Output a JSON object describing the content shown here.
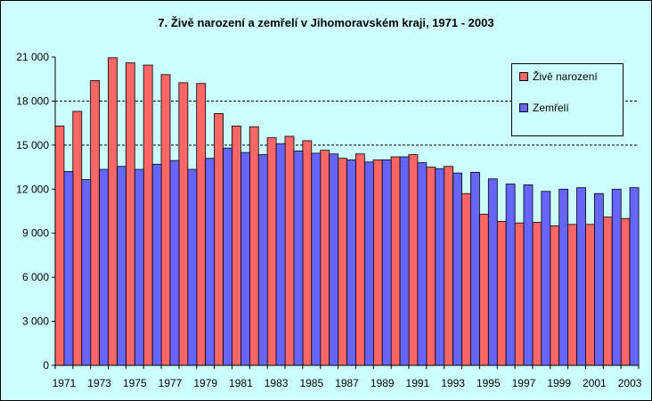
{
  "chart_data": {
    "type": "bar",
    "title": "7. Živě narození a zemřelí v Jihomoravském kraji, 1971 - 2003",
    "categories": [
      "1971",
      "1972",
      "1973",
      "1974",
      "1975",
      "1976",
      "1977",
      "1978",
      "1979",
      "1980",
      "1981",
      "1982",
      "1983",
      "1984",
      "1985",
      "1986",
      "1987",
      "1988",
      "1989",
      "1990",
      "1991",
      "1992",
      "1993",
      "1994",
      "1995",
      "1996",
      "1997",
      "1998",
      "1999",
      "2000",
      "2001",
      "2002",
      "2003"
    ],
    "x_tick_labels": [
      "1971",
      "1973",
      "1975",
      "1977",
      "1979",
      "1981",
      "1983",
      "1985",
      "1987",
      "1989",
      "1991",
      "1993",
      "1995",
      "1997",
      "1999",
      "2001",
      "2003"
    ],
    "y_tick_labels": [
      "0",
      "3 000",
      "6 000",
      "9 000",
      "12 000",
      "15 000",
      "18 000",
      "21 000"
    ],
    "y_ticks": [
      0,
      3000,
      6000,
      9000,
      12000,
      15000,
      18000,
      21000
    ],
    "ylim": [
      0,
      21000
    ],
    "series": [
      {
        "name": "Živě narození",
        "color": "#ff6666",
        "values": [
          16300,
          17300,
          19400,
          20950,
          20600,
          20450,
          19800,
          19250,
          19200,
          17150,
          16300,
          16250,
          15500,
          15600,
          15300,
          14650,
          14100,
          14400,
          14000,
          14200,
          14350,
          13500,
          13550,
          11700,
          10300,
          9800,
          9700,
          9750,
          9500,
          9600,
          9600,
          10100,
          10000
        ]
      },
      {
        "name": "Zemřelí",
        "color": "#6666ff",
        "values": [
          13200,
          12650,
          13350,
          13550,
          13350,
          13700,
          13950,
          13350,
          14100,
          14800,
          14500,
          14350,
          15100,
          14600,
          14450,
          14400,
          14000,
          13850,
          14000,
          14200,
          13800,
          13400,
          13100,
          13150,
          12700,
          12350,
          12300,
          11850,
          12000,
          12100,
          11700,
          12000,
          12100
        ]
      }
    ],
    "grid": "dashed horizontal at 15 000 and 18 000",
    "legend": "top-right"
  }
}
